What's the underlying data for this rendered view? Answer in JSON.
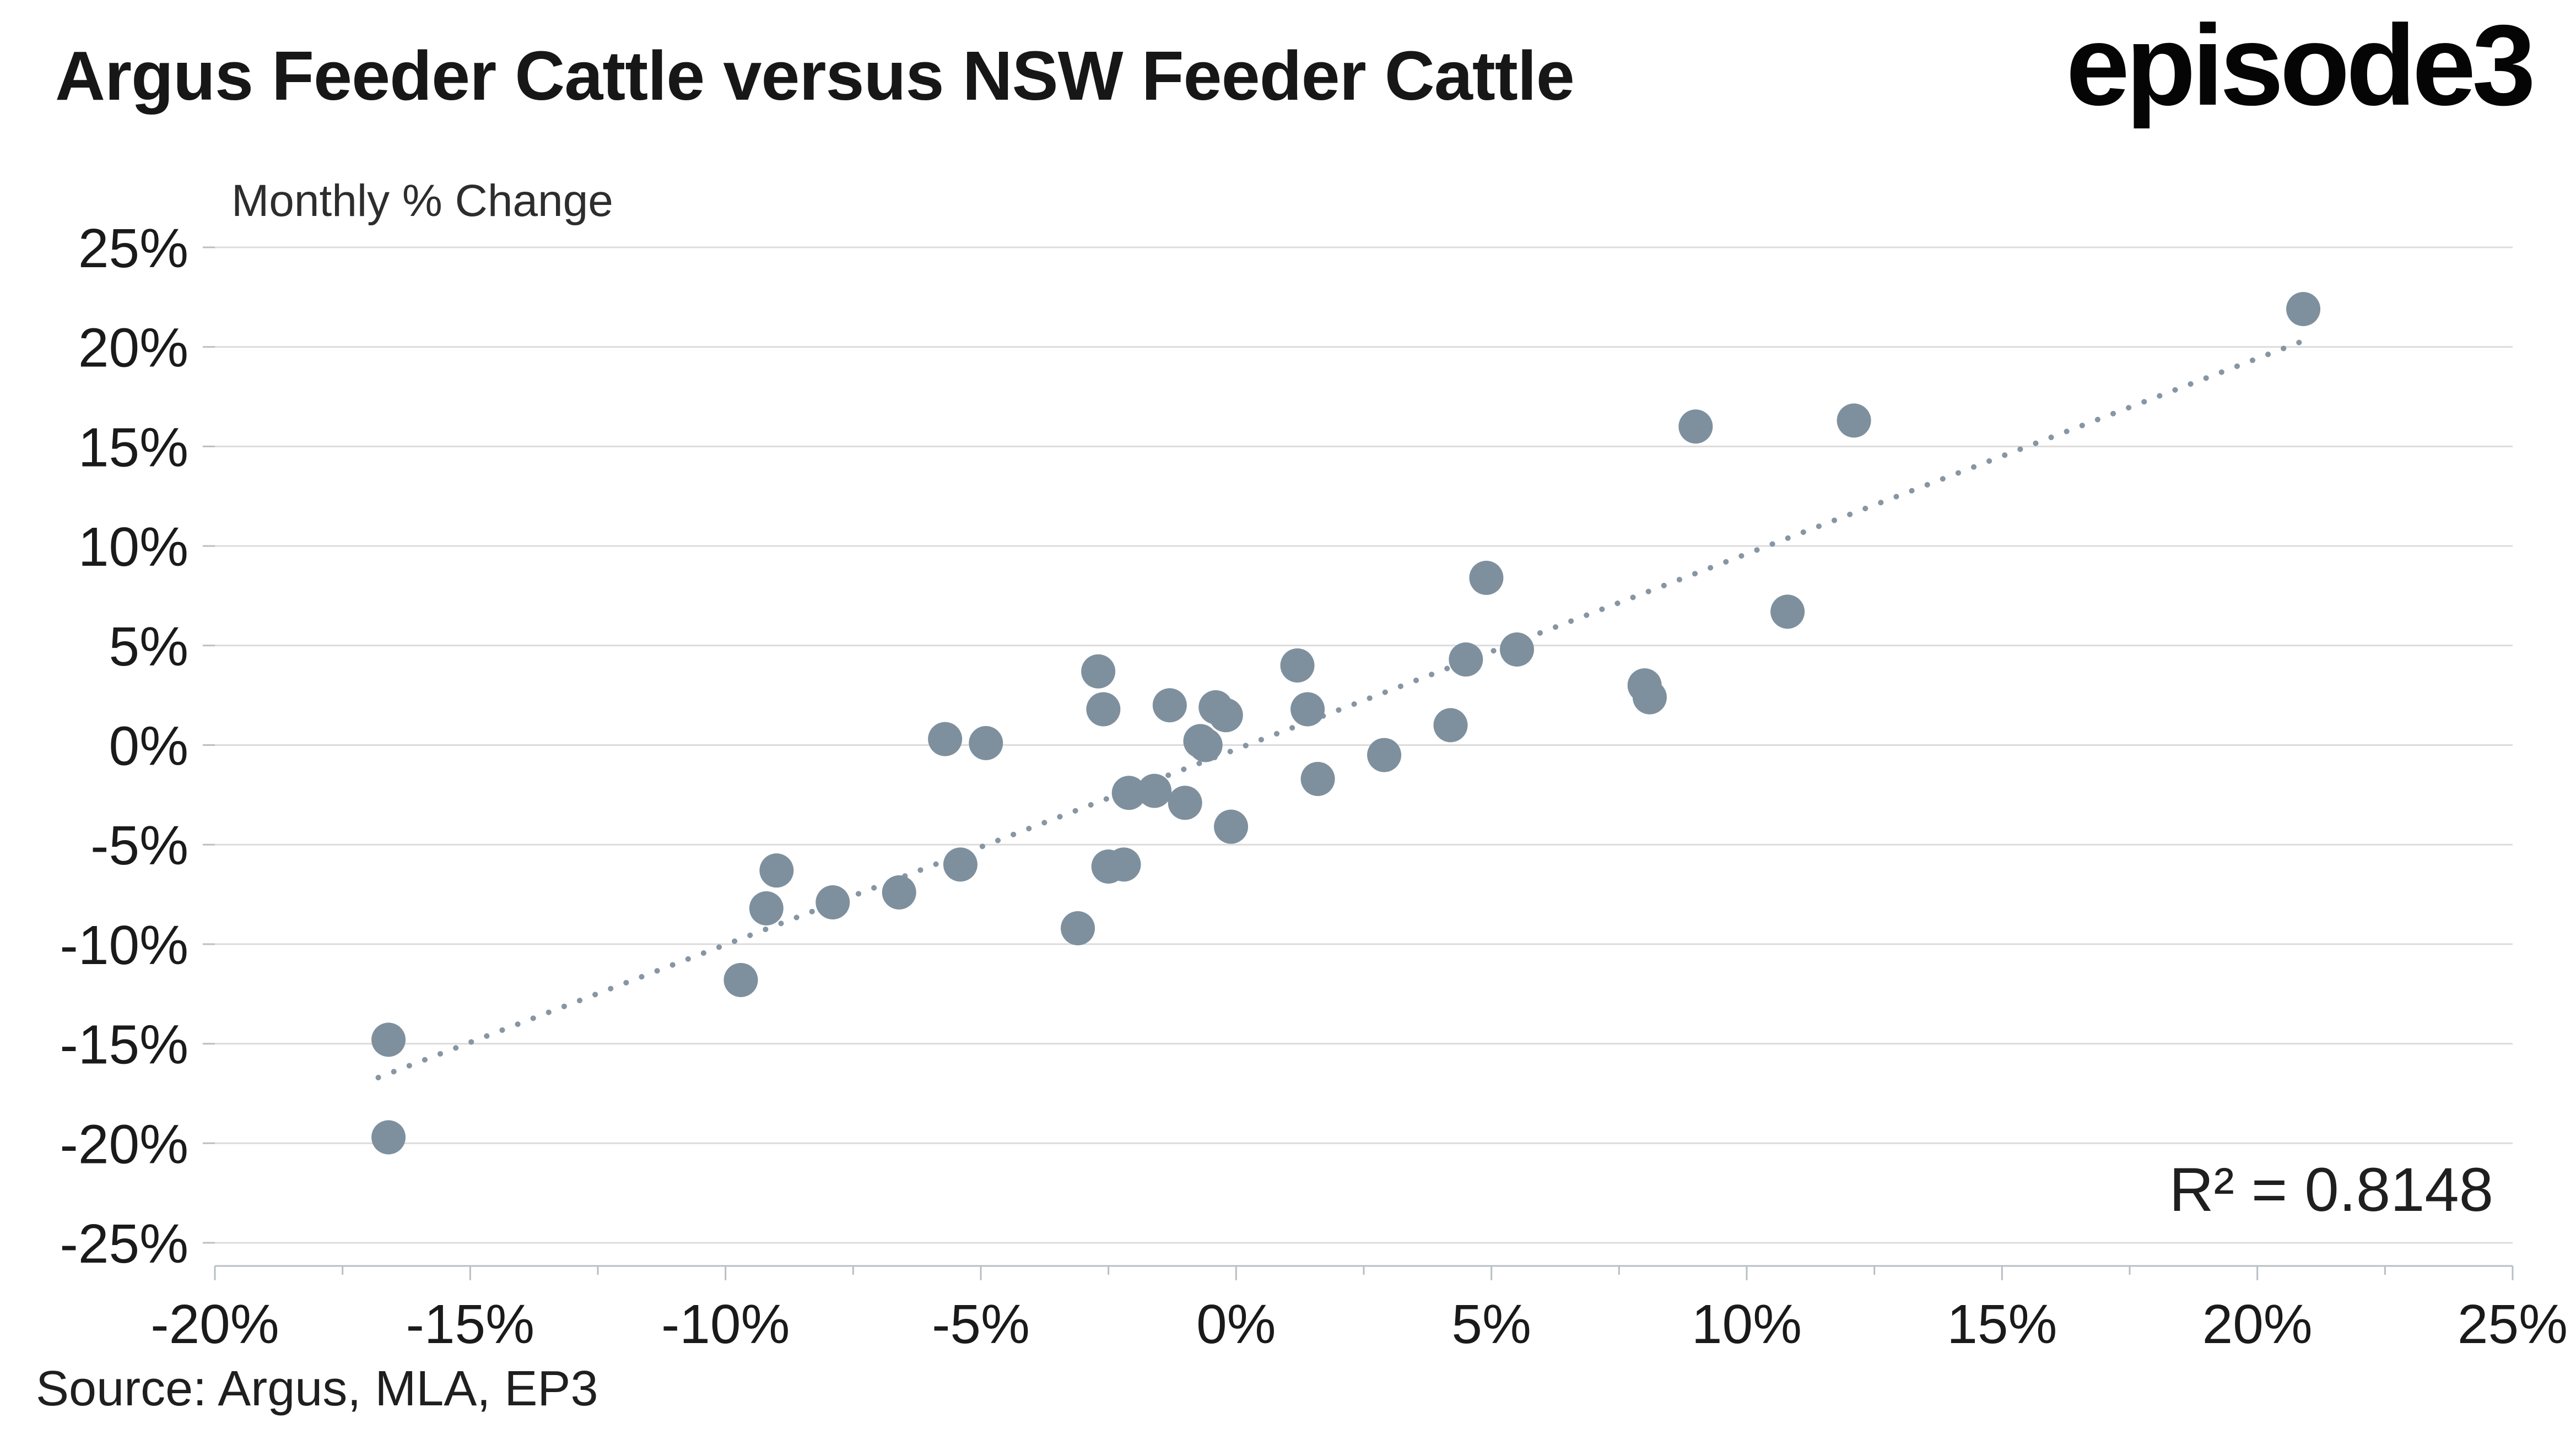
{
  "header": {
    "title": "Argus Feeder Cattle versus NSW Feeder Cattle",
    "logo": "episode3"
  },
  "footer": {
    "source": "Source: Argus, MLA, EP3"
  },
  "chart_data": {
    "type": "scatter",
    "title": "Argus Feeder Cattle versus NSW Feeder Cattle",
    "subtitle": "Monthly % Change",
    "annotation": "R² = 0.8148",
    "xlim": [
      -20,
      25
    ],
    "ylim": [
      -25,
      25
    ],
    "x_tick_labels": [
      "-20%",
      "-15%",
      "-10%",
      "-5%",
      "0%",
      "5%",
      "10%",
      "15%",
      "20%",
      "25%"
    ],
    "y_tick_labels": [
      "-25%",
      "-20%",
      "-15%",
      "-10%",
      "-5%",
      "0%",
      "5%",
      "10%",
      "15%",
      "20%",
      "25%"
    ],
    "grid": "horizontal",
    "legend": "none",
    "colors": {
      "point": "#7e909e",
      "grid": "#dcdcdc",
      "axis": "#b9bfc4",
      "trend": "#8796a4",
      "text": "#1a1a1a"
    },
    "trendline": {
      "x1": -16.8,
      "y1": -16.7,
      "x2": 21.0,
      "y2": 20.4,
      "style": "dotted"
    },
    "points": [
      [
        -16.6,
        -14.8
      ],
      [
        -16.6,
        -19.7
      ],
      [
        -9.7,
        -11.8
      ],
      [
        -9.2,
        -8.2
      ],
      [
        -9.0,
        -6.3
      ],
      [
        -7.9,
        -7.9
      ],
      [
        -6.6,
        -7.4
      ],
      [
        -5.7,
        0.3
      ],
      [
        -5.4,
        -6.0
      ],
      [
        -4.9,
        0.1
      ],
      [
        -3.1,
        -9.2
      ],
      [
        -2.7,
        3.7
      ],
      [
        -2.6,
        1.8
      ],
      [
        -2.5,
        -6.1
      ],
      [
        -2.2,
        -6.0
      ],
      [
        -2.1,
        -2.4
      ],
      [
        -1.6,
        -2.3
      ],
      [
        -1.3,
        2.0
      ],
      [
        -1.0,
        -2.9
      ],
      [
        -0.7,
        0.2
      ],
      [
        -0.6,
        0.0
      ],
      [
        -0.4,
        1.9
      ],
      [
        -0.2,
        1.5
      ],
      [
        -0.1,
        -4.1
      ],
      [
        1.2,
        4.0
      ],
      [
        1.4,
        1.8
      ],
      [
        1.6,
        -1.7
      ],
      [
        2.9,
        -0.5
      ],
      [
        4.2,
        1.0
      ],
      [
        4.5,
        4.3
      ],
      [
        4.9,
        8.4
      ],
      [
        5.5,
        4.8
      ],
      [
        8.0,
        3.0
      ],
      [
        8.1,
        2.4
      ],
      [
        9.0,
        16.0
      ],
      [
        10.8,
        6.7
      ],
      [
        12.1,
        16.3
      ],
      [
        20.9,
        21.9
      ]
    ]
  }
}
